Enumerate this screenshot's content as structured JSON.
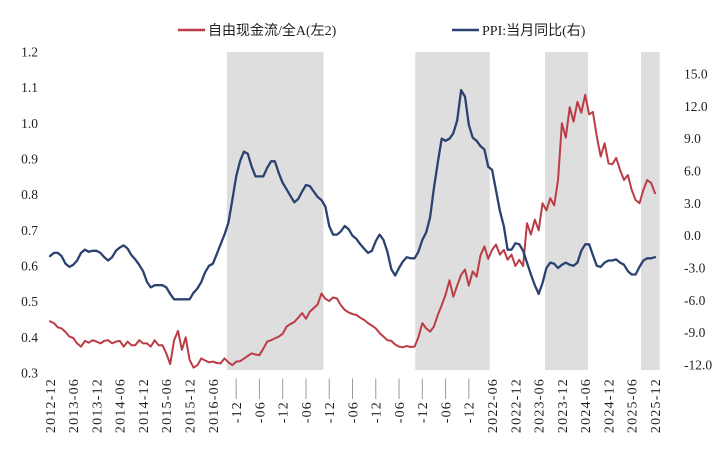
{
  "legend": [
    {
      "label": "自由现金流/全A(左2)",
      "color": "#bc3c46"
    },
    {
      "label": "PPI:当月同比(右)",
      "color": "#2b4270"
    }
  ],
  "left_axis": {
    "ticks": [
      "1.2",
      "1.1",
      "1.0",
      "0.9",
      "0.8",
      "0.7",
      "0.6",
      "0.5",
      "0.4",
      "0.3"
    ],
    "min": 0.3,
    "max": 1.2
  },
  "right_axis": {
    "ticks": [
      "15.0",
      "12.0",
      "9.0",
      "6.0",
      "3.0",
      "0.0",
      "-3.0",
      "-6.0",
      "-9.0",
      "-12.0"
    ],
    "min": -12.0,
    "max": 15.0
  },
  "x_axis": {
    "tick_labels": [
      {
        "text": "2012-12",
        "clipped": false
      },
      {
        "text": "2013-06",
        "clipped": false
      },
      {
        "text": "2013-12",
        "clipped": false
      },
      {
        "text": "2014-06",
        "clipped": false
      },
      {
        "text": "2014-12",
        "clipped": false
      },
      {
        "text": "2015-06",
        "clipped": false
      },
      {
        "text": "2015-12",
        "clipped": false
      },
      {
        "text": "2016-06",
        "clipped": false
      },
      {
        "text": "-12",
        "clipped": true
      },
      {
        "text": "-06",
        "clipped": true
      },
      {
        "text": "-12",
        "clipped": true
      },
      {
        "text": "-06",
        "clipped": true
      },
      {
        "text": "-12",
        "clipped": true
      },
      {
        "text": "-06",
        "clipped": true
      },
      {
        "text": "-12",
        "clipped": true
      },
      {
        "text": "-06",
        "clipped": true
      },
      {
        "text": "-12",
        "clipped": true
      },
      {
        "text": "-06",
        "clipped": true
      },
      {
        "text": "-12",
        "clipped": true
      },
      {
        "text": "2022-06",
        "clipped": false
      },
      {
        "text": "2022-12",
        "clipped": false
      },
      {
        "text": "2023-06",
        "clipped": false
      },
      {
        "text": "2023-12",
        "clipped": false
      },
      {
        "text": "2024-06",
        "clipped": false
      },
      {
        "text": "2024-12",
        "clipped": false
      },
      {
        "text": "2025-06",
        "clipped": false
      },
      {
        "text": "2025-12",
        "clipped": false
      }
    ]
  },
  "shaded_bands": {
    "color": "#dedede",
    "ranges": [
      {
        "from_tick": 7.6,
        "to_tick": 11.75
      },
      {
        "from_tick": 15.7,
        "to_tick": 18.9
      },
      {
        "from_tick": 21.27,
        "to_tick": 23.12
      },
      {
        "from_tick": 25.4,
        "to_tick": 26.2
      }
    ]
  },
  "chart_data": {
    "type": "line",
    "title": "",
    "x_start": "2012-12",
    "x_end": "2025-12",
    "freq": "monthly",
    "n_months": 157,
    "left_ylim": [
      0.3,
      1.2
    ],
    "right_ylim": [
      -12.0,
      15.0
    ],
    "grid": false,
    "legend_position": "top",
    "series": [
      {
        "name": "自由现金流/全A(左2)",
        "axis": "left",
        "color": "#bc3c46",
        "values": [
          0.445,
          0.44,
          0.428,
          0.425,
          0.415,
          0.402,
          0.398,
          0.383,
          0.374,
          0.39,
          0.385,
          0.392,
          0.388,
          0.383,
          0.39,
          0.392,
          0.383,
          0.388,
          0.39,
          0.374,
          0.388,
          0.378,
          0.378,
          0.392,
          0.383,
          0.383,
          0.374,
          0.392,
          0.378,
          0.378,
          0.355,
          0.325,
          0.392,
          0.418,
          0.365,
          0.4,
          0.337,
          0.315,
          0.322,
          0.341,
          0.335,
          0.33,
          0.332,
          0.328,
          0.327,
          0.341,
          0.33,
          0.322,
          0.332,
          0.333,
          0.34,
          0.348,
          0.355,
          0.352,
          0.35,
          0.368,
          0.388,
          0.392,
          0.397,
          0.402,
          0.41,
          0.43,
          0.437,
          0.443,
          0.455,
          0.468,
          0.452,
          0.472,
          0.482,
          0.492,
          0.523,
          0.508,
          0.502,
          0.512,
          0.509,
          0.49,
          0.477,
          0.47,
          0.465,
          0.463,
          0.455,
          0.449,
          0.44,
          0.433,
          0.425,
          0.412,
          0.402,
          0.392,
          0.39,
          0.38,
          0.374,
          0.372,
          0.376,
          0.373,
          0.374,
          0.4,
          0.44,
          0.425,
          0.416,
          0.43,
          0.463,
          0.49,
          0.52,
          0.56,
          0.514,
          0.545,
          0.575,
          0.59,
          0.545,
          0.585,
          0.57,
          0.63,
          0.655,
          0.62,
          0.645,
          0.66,
          0.632,
          0.645,
          0.618,
          0.632,
          0.6,
          0.617,
          0.6,
          0.72,
          0.688,
          0.73,
          0.7,
          0.776,
          0.756,
          0.79,
          0.77,
          0.84,
          1.0,
          0.96,
          1.045,
          1.005,
          1.06,
          1.03,
          1.08,
          1.025,
          1.032,
          0.963,
          0.907,
          0.944,
          0.888,
          0.885,
          0.903,
          0.869,
          0.841,
          0.855,
          0.813,
          0.785,
          0.776,
          0.813,
          0.841,
          0.833,
          0.804
        ]
      },
      {
        "name": "PPI:当月同比(右)",
        "axis": "right",
        "color": "#2b4270",
        "values": [
          -1.9,
          -1.6,
          -1.6,
          -1.9,
          -2.6,
          -2.9,
          -2.7,
          -2.3,
          -1.6,
          -1.3,
          -1.5,
          -1.4,
          -1.4,
          -1.6,
          -2.0,
          -2.3,
          -2.0,
          -1.4,
          -1.1,
          -0.9,
          -1.2,
          -1.8,
          -2.2,
          -2.7,
          -3.3,
          -4.3,
          -4.8,
          -4.6,
          -4.6,
          -4.6,
          -4.8,
          -5.4,
          -5.9,
          -5.9,
          -5.9,
          -5.9,
          -5.9,
          -5.3,
          -4.9,
          -4.3,
          -3.4,
          -2.8,
          -2.6,
          -1.7,
          -0.8,
          0.1,
          1.2,
          3.3,
          5.5,
          6.9,
          7.8,
          7.6,
          6.4,
          5.5,
          5.5,
          5.5,
          6.3,
          6.9,
          6.9,
          5.8,
          4.9,
          4.3,
          3.7,
          3.1,
          3.4,
          4.1,
          4.7,
          4.6,
          4.1,
          3.6,
          3.3,
          2.7,
          0.9,
          0.1,
          0.1,
          0.4,
          0.9,
          0.6,
          0.0,
          -0.3,
          -0.8,
          -1.2,
          -1.6,
          -1.4,
          -0.5,
          0.1,
          -0.4,
          -1.5,
          -3.1,
          -3.7,
          -3.0,
          -2.4,
          -2.0,
          -2.1,
          -2.1,
          -1.5,
          -0.4,
          0.3,
          1.7,
          4.4,
          6.8,
          9.0,
          8.8,
          9.0,
          9.5,
          10.7,
          13.5,
          12.9,
          10.3,
          9.1,
          8.8,
          8.3,
          8.0,
          6.4,
          6.1,
          4.2,
          2.3,
          0.9,
          -1.3,
          -1.3,
          -0.7,
          -0.8,
          -1.4,
          -2.5,
          -3.6,
          -4.6,
          -5.4,
          -4.4,
          -3.0,
          -2.5,
          -2.6,
          -3.0,
          -2.7,
          -2.5,
          -2.7,
          -2.8,
          -2.5,
          -1.4,
          -0.8,
          -0.8,
          -1.8,
          -2.8,
          -2.9,
          -2.5,
          -2.3,
          -2.3,
          -2.2,
          -2.5,
          -2.7,
          -3.3,
          -3.6,
          -3.6,
          -2.9,
          -2.3,
          -2.1,
          -2.1,
          -2.0
        ]
      }
    ]
  }
}
